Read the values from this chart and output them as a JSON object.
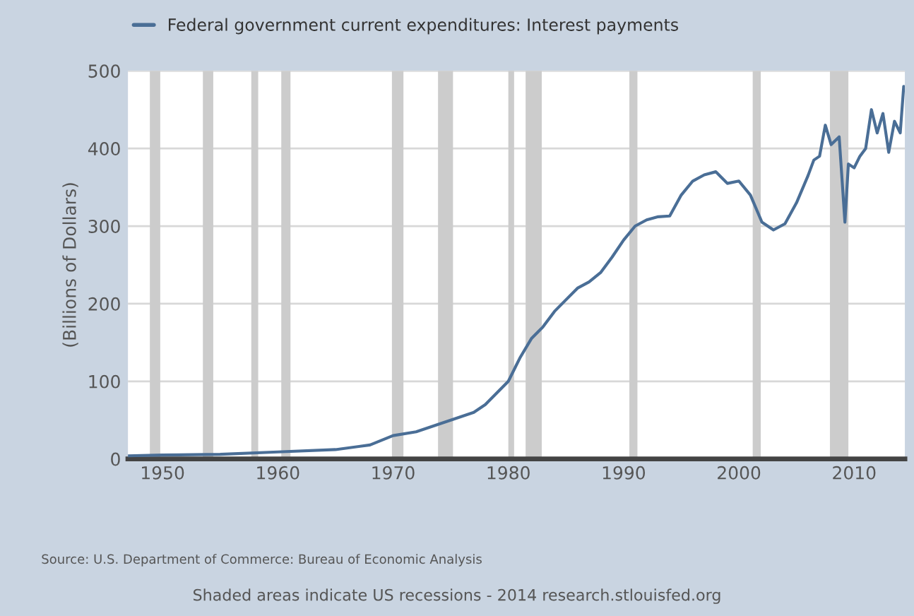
{
  "chart_data": {
    "type": "line",
    "x": [
      1947,
      1950,
      1955,
      1960,
      1965,
      1968,
      1970,
      1972,
      1975,
      1977,
      1978,
      1979,
      1980,
      1981,
      1982,
      1983,
      1984,
      1985,
      1986,
      1987,
      1988,
      1989,
      1990,
      1991,
      1992,
      1993,
      1994,
      1995,
      1996,
      1997,
      1998,
      1999,
      2000,
      2001,
      2002,
      2003,
      2004,
      2005,
      2006,
      2006.5,
      2007,
      2007.5,
      2008,
      2008.7,
      2009.2,
      2009.5,
      2010,
      2010.5,
      2011,
      2011.5,
      2012,
      2012.5,
      2013,
      2013.5,
      2014,
      2014.3
    ],
    "series": [
      {
        "name": "Federal government current expenditures: Interest payments",
        "color": "#4a6e96",
        "values": [
          4,
          5,
          6,
          9,
          12,
          18,
          30,
          35,
          50,
          60,
          70,
          85,
          100,
          130,
          155,
          170,
          190,
          205,
          220,
          228,
          240,
          260,
          282,
          300,
          308,
          312,
          313,
          340,
          358,
          366,
          370,
          355,
          358,
          340,
          305,
          295,
          303,
          330,
          365,
          385,
          390,
          430,
          405,
          415,
          305,
          380,
          375,
          390,
          400,
          450,
          420,
          445,
          395,
          435,
          420,
          480
        ]
      }
    ],
    "xlim": [
      1947,
      2014.4
    ],
    "xticks": [
      1950,
      1960,
      1970,
      1980,
      1990,
      2000,
      2010
    ],
    "ylim": [
      0,
      500
    ],
    "yticks": [
      0,
      100,
      200,
      300,
      400,
      500
    ],
    "ylabel": "(Billions of Dollars)",
    "bands": [
      {
        "axis": "x",
        "from": 1948.9,
        "to": 1949.8,
        "color": "#cccccc"
      },
      {
        "axis": "x",
        "from": 1953.5,
        "to": 1954.4,
        "color": "#cccccc"
      },
      {
        "axis": "x",
        "from": 1957.7,
        "to": 1958.3,
        "color": "#cccccc"
      },
      {
        "axis": "x",
        "from": 1960.3,
        "to": 1961.1,
        "color": "#cccccc"
      },
      {
        "axis": "x",
        "from": 1969.9,
        "to": 1970.9,
        "color": "#cccccc"
      },
      {
        "axis": "x",
        "from": 1973.9,
        "to": 1975.2,
        "color": "#cccccc"
      },
      {
        "axis": "x",
        "from": 1980.0,
        "to": 1980.5,
        "color": "#cccccc"
      },
      {
        "axis": "x",
        "from": 1981.5,
        "to": 1982.9,
        "color": "#cccccc"
      },
      {
        "axis": "x",
        "from": 1990.5,
        "to": 1991.2,
        "color": "#cccccc"
      },
      {
        "axis": "x",
        "from": 2001.2,
        "to": 2001.9,
        "color": "#cccccc"
      },
      {
        "axis": "x",
        "from": 2007.9,
        "to": 2009.5,
        "color": "#cccccc"
      }
    ],
    "annotations": [
      "Source: U.S. Department of Commerce: Bureau of Economic Analysis",
      "Shaded areas indicate US recessions - 2014 research.stlouisfed.org"
    ],
    "grid": "y",
    "legend": "top left"
  }
}
